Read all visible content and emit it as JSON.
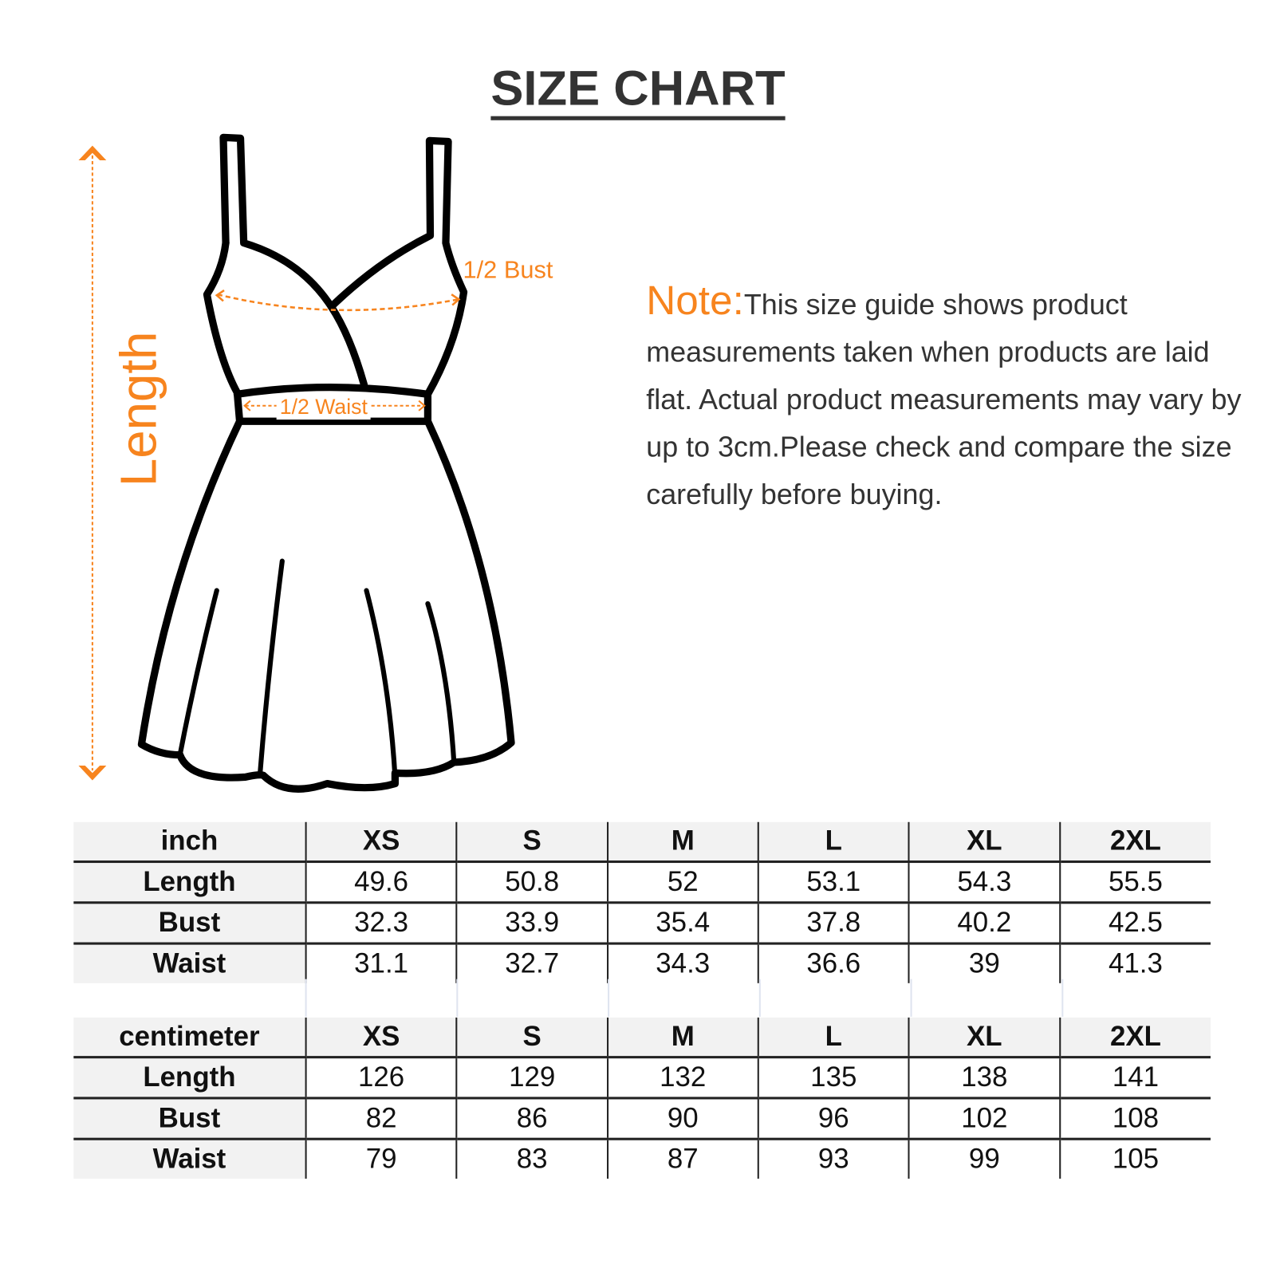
{
  "title": "SIZE CHART",
  "diagram": {
    "length_label": "Length",
    "bust_label": "1/2 Bust",
    "waist_label": "1/2 Waist",
    "accent_color": "#f7841e"
  },
  "note": {
    "heading": "Note:",
    "text": "This size guide shows product measurements taken when products are laid flat. Actual product measurements may vary by up to 3cm.Please check and compare the size carefully before buying."
  },
  "tables": [
    {
      "unit": "inch",
      "sizes": [
        "XS",
        "S",
        "M",
        "L",
        "XL",
        "2XL"
      ],
      "rows": [
        {
          "label": "Length",
          "values": [
            "49.6",
            "50.8",
            "52",
            "53.1",
            "54.3",
            "55.5"
          ]
        },
        {
          "label": "Bust",
          "values": [
            "32.3",
            "33.9",
            "35.4",
            "37.8",
            "40.2",
            "42.5"
          ]
        },
        {
          "label": "Waist",
          "values": [
            "31.1",
            "32.7",
            "34.3",
            "36.6",
            "39",
            "41.3"
          ]
        }
      ]
    },
    {
      "unit": "centimeter",
      "sizes": [
        "XS",
        "S",
        "M",
        "L",
        "XL",
        "2XL"
      ],
      "rows": [
        {
          "label": "Length",
          "values": [
            "126",
            "129",
            "132",
            "135",
            "138",
            "141"
          ]
        },
        {
          "label": "Bust",
          "values": [
            "82",
            "86",
            "90",
            "96",
            "102",
            "108"
          ]
        },
        {
          "label": "Waist",
          "values": [
            "79",
            "83",
            "87",
            "93",
            "99",
            "105"
          ]
        }
      ]
    }
  ]
}
